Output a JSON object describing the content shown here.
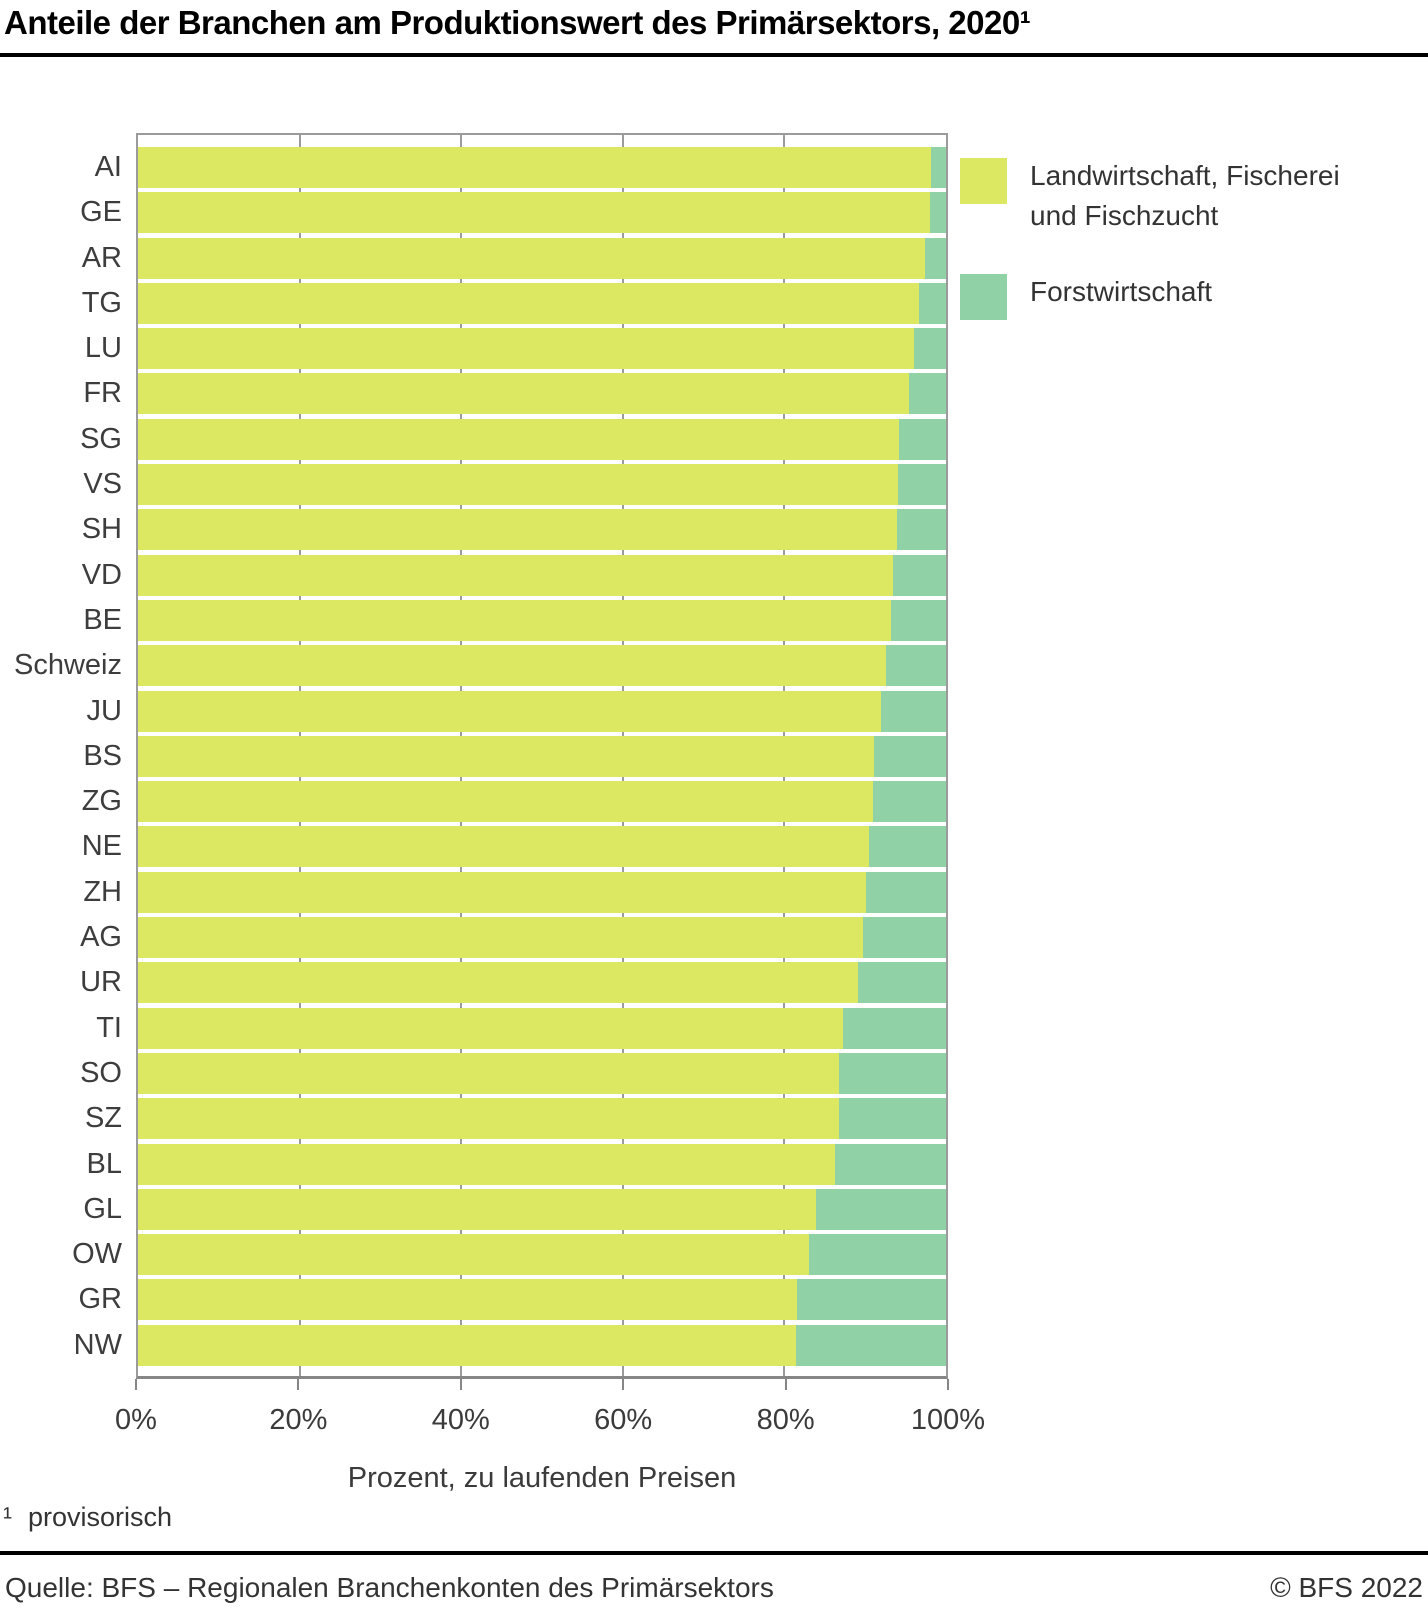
{
  "title": "Anteile der Branchen am Produktionswert des Primärsektors, 2020¹",
  "legend": {
    "items": [
      {
        "label": "Landwirtschaft, Fischerei und Fischzucht"
      },
      {
        "label": "Forstwirtschaft"
      }
    ]
  },
  "chart_data": {
    "type": "bar",
    "orientation": "horizontal",
    "stacked": true,
    "unit": "%",
    "categories": [
      "AI",
      "GE",
      "AR",
      "TG",
      "LU",
      "FR",
      "SG",
      "VS",
      "SH",
      "VD",
      "BE",
      "Schweiz",
      "JU",
      "BS",
      "ZG",
      "NE",
      "ZH",
      "AG",
      "UR",
      "TI",
      "SO",
      "SZ",
      "BL",
      "GL",
      "OW",
      "GR",
      "NW"
    ],
    "series": [
      {
        "name": "Landwirtschaft, Fischerei und Fischzucht",
        "color": "#dce861",
        "values": [
          98.2,
          98.0,
          97.4,
          96.6,
          96.1,
          95.4,
          94.2,
          94.1,
          93.9,
          93.4,
          93.2,
          92.6,
          91.9,
          91.1,
          91.0,
          90.5,
          90.1,
          89.7,
          89.1,
          87.2,
          86.8,
          86.7,
          86.3,
          83.9,
          83.0,
          81.6,
          81.4
        ]
      },
      {
        "name": "Forstwirtschaft",
        "color": "#90d1a5",
        "values": [
          1.8,
          2.0,
          2.6,
          3.4,
          3.9,
          4.6,
          5.8,
          5.9,
          6.1,
          6.6,
          6.8,
          7.4,
          8.1,
          8.9,
          9.0,
          9.5,
          9.9,
          10.3,
          10.9,
          12.8,
          13.2,
          13.3,
          13.7,
          16.1,
          17.0,
          18.4,
          18.6
        ]
      }
    ],
    "xlabel": "Prozent, zu laufenden Preisen",
    "xlim": [
      0,
      100
    ],
    "xticks": [
      0,
      20,
      40,
      60,
      80,
      100
    ],
    "xtick_labels": [
      "0%",
      "20%",
      "40%",
      "60%",
      "80%",
      "100%"
    ],
    "grid": true,
    "grid_color": "#9b9b9b",
    "legend_position": "top-right"
  },
  "footnote": {
    "marker": "¹",
    "text": "provisorisch"
  },
  "footer": {
    "source": "Quelle: BFS – Regionalen Branchenkonten des Primärsektors",
    "copyright": "© BFS 2022"
  }
}
